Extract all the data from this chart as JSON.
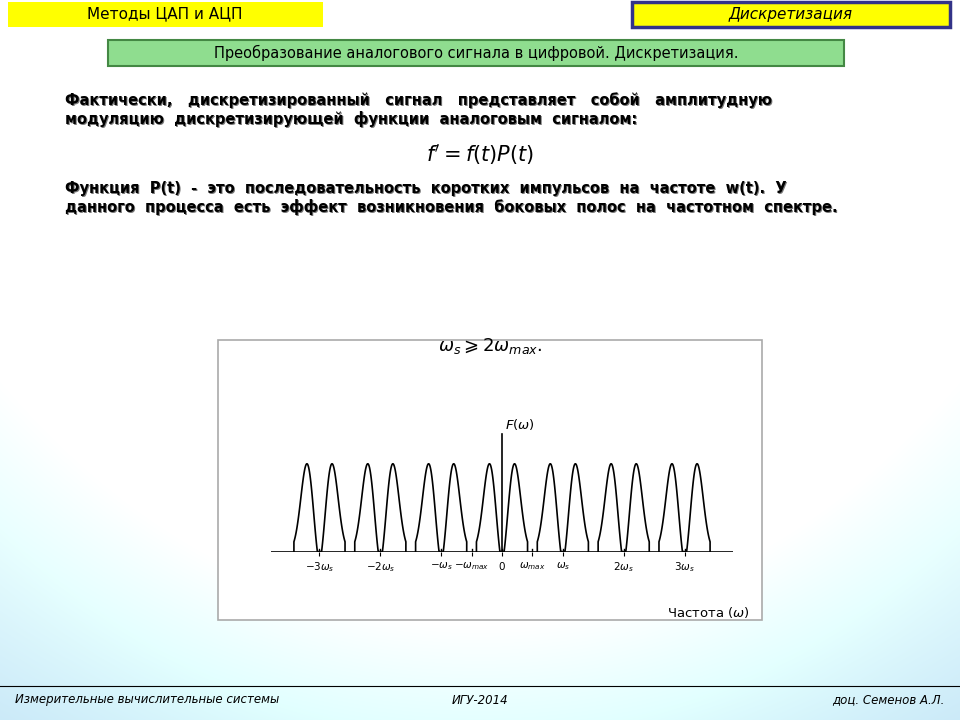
{
  "title_left": "Методы ЦАП и АЦП",
  "title_right": "Дискретизация",
  "subtitle": "Преобразование аналогового сигнала в цифровой. Дискретизация.",
  "text1a": "Фактически,   дискретизированный   сигнал   представляет   собой   амплитудную",
  "text1b": "модуляцию  дискретизирующей  функции  аналоговым  сигналом:",
  "formula1": "$f' = f(t)P(t)$",
  "text2a": "Функция  P(t)  -  это  последовательность  коротких  импульсов  на  частоте  w(t).  У",
  "text2b": "данного  процесса  есть  эффект  возникновения  боковых  полос  на  частотном  спектре.",
  "footer_left": "Измерительные вычислительные системы",
  "footer_center": "ИГУ-2014",
  "footer_right": "доц. Семенов А.Л.",
  "yellow": "#ffff00",
  "green_box": "#8fdd8f",
  "right_border": "#333388"
}
